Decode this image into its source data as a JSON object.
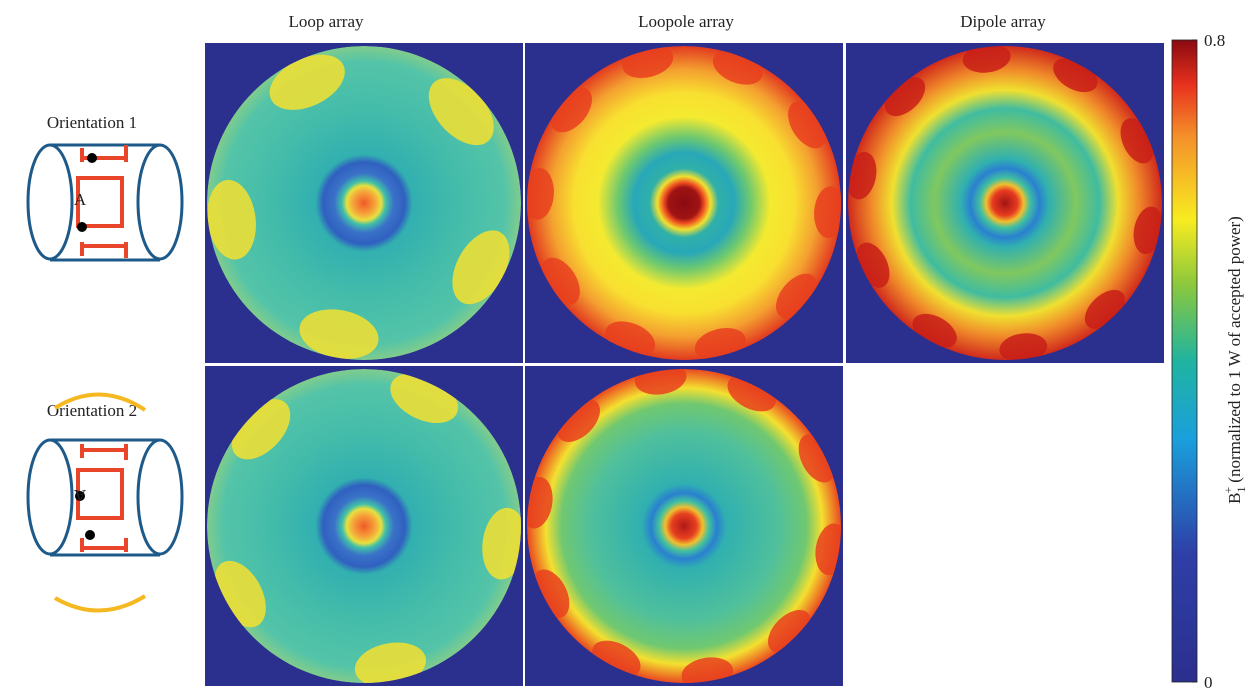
{
  "columns": [
    "Loop array",
    "Loopole array",
    "Dipole array"
  ],
  "rows": [
    "Orientation 1",
    "Orientation 2"
  ],
  "diagrams": [
    {
      "port": "A"
    },
    {
      "port": "A"
    }
  ],
  "colorbar": {
    "ticks": [
      0,
      0.8
    ],
    "symbol": "B",
    "subscript": "1",
    "superscript": "+",
    "text": "(normalized to 1 W of accepted power)"
  }
}
